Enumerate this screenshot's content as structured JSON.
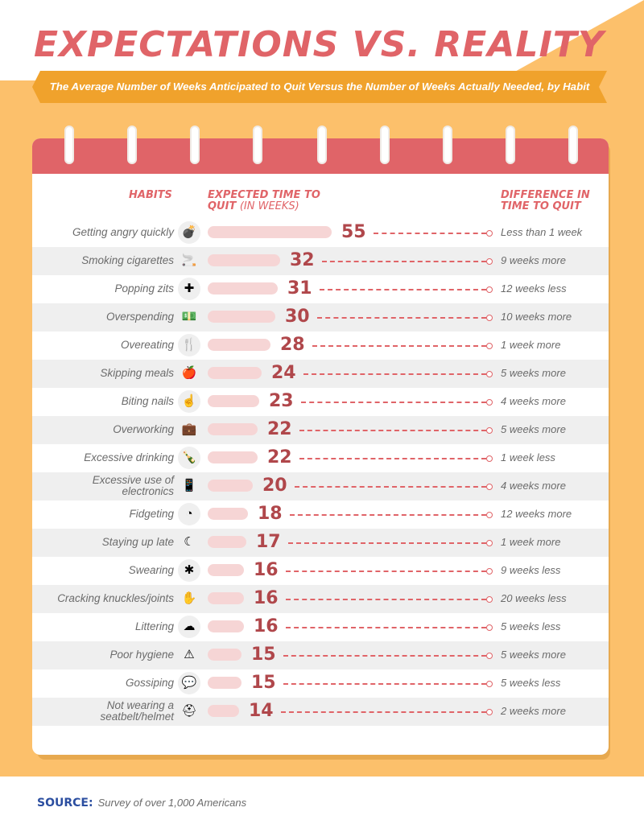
{
  "title": "EXPECTATIONS VS. REALITY",
  "subtitle": "The Average Number of Weeks Anticipated to Quit Versus the Number of Weeks Actually Needed, by Habit",
  "columns": {
    "habits": "HABITS",
    "expected_line1": "EXPECTED TIME TO",
    "expected_line2": "QUIT",
    "expected_unit": "(IN WEEKS)",
    "difference_line1": "DIFFERENCE IN",
    "difference_line2": "TIME TO QUIT"
  },
  "colors": {
    "accent_red": "#e06468",
    "value_red": "#b0474b",
    "bar_pink": "#f6d5d5",
    "background_orange": "#fcc06b",
    "ribbon_orange": "#f0a22c",
    "source_blue": "#2b4ea0"
  },
  "chart_data": {
    "type": "bar",
    "orientation": "horizontal",
    "categories": [
      "Getting angry quickly",
      "Smoking cigarettes",
      "Popping zits",
      "Overspending",
      "Overeating",
      "Skipping meals",
      "Biting nails",
      "Overworking",
      "Excessive drinking",
      "Excessive use of electronics",
      "Fidgeting",
      "Staying up late",
      "Swearing",
      "Cracking knuckles/joints",
      "Littering",
      "Poor hygiene",
      "Gossiping",
      "Not wearing a seatbelt/helmet"
    ],
    "label_lines": [
      [
        "Getting angry quickly"
      ],
      [
        "Smoking cigarettes"
      ],
      [
        "Popping zits"
      ],
      [
        "Overspending"
      ],
      [
        "Overeating"
      ],
      [
        "Skipping meals"
      ],
      [
        "Biting nails"
      ],
      [
        "Overworking"
      ],
      [
        "Excessive drinking"
      ],
      [
        "Excessive use of",
        "electronics"
      ],
      [
        "Fidgeting"
      ],
      [
        "Staying up late"
      ],
      [
        "Swearing"
      ],
      [
        "Cracking knuckles/joints"
      ],
      [
        "Littering"
      ],
      [
        "Poor hygiene"
      ],
      [
        "Gossiping"
      ],
      [
        "Not wearing a",
        "seatbelt/helmet"
      ]
    ],
    "values": [
      55,
      32,
      31,
      30,
      28,
      24,
      23,
      22,
      22,
      20,
      18,
      17,
      16,
      16,
      16,
      15,
      15,
      14
    ],
    "differences": [
      "Less than 1  week",
      "9 weeks more",
      "12 weeks less",
      "10 weeks more",
      "1 week more",
      "5 weeks more",
      "4 weeks more",
      "5 weeks more",
      "1  week less",
      "4 weeks more",
      "12 weeks more",
      "1 week more",
      "9 weeks less",
      "20 weeks less",
      "5 weeks less",
      "5 weeks more",
      "5 weeks less",
      "2 weeks more"
    ],
    "icons": [
      "bomb-icon",
      "cigarettes-icon",
      "pimple-bandage-icon",
      "money-icon",
      "fork-knife-warning-icon",
      "apple-icon",
      "fingernail-icon",
      "briefcase-clock-icon",
      "bottle-icon",
      "phone-icon",
      "fidget-gauge-icon",
      "moon-icon",
      "swear-bubble-icon",
      "knuckle-icon",
      "trash-cloud-icon",
      "bathtub-warning-icon",
      "chat-bubbles-icon",
      "seatbelt-helmet-icon"
    ],
    "xlim": [
      0,
      55
    ]
  },
  "source": {
    "label": "SOURCE:",
    "text": "Survey of over 1,000 Americans"
  }
}
